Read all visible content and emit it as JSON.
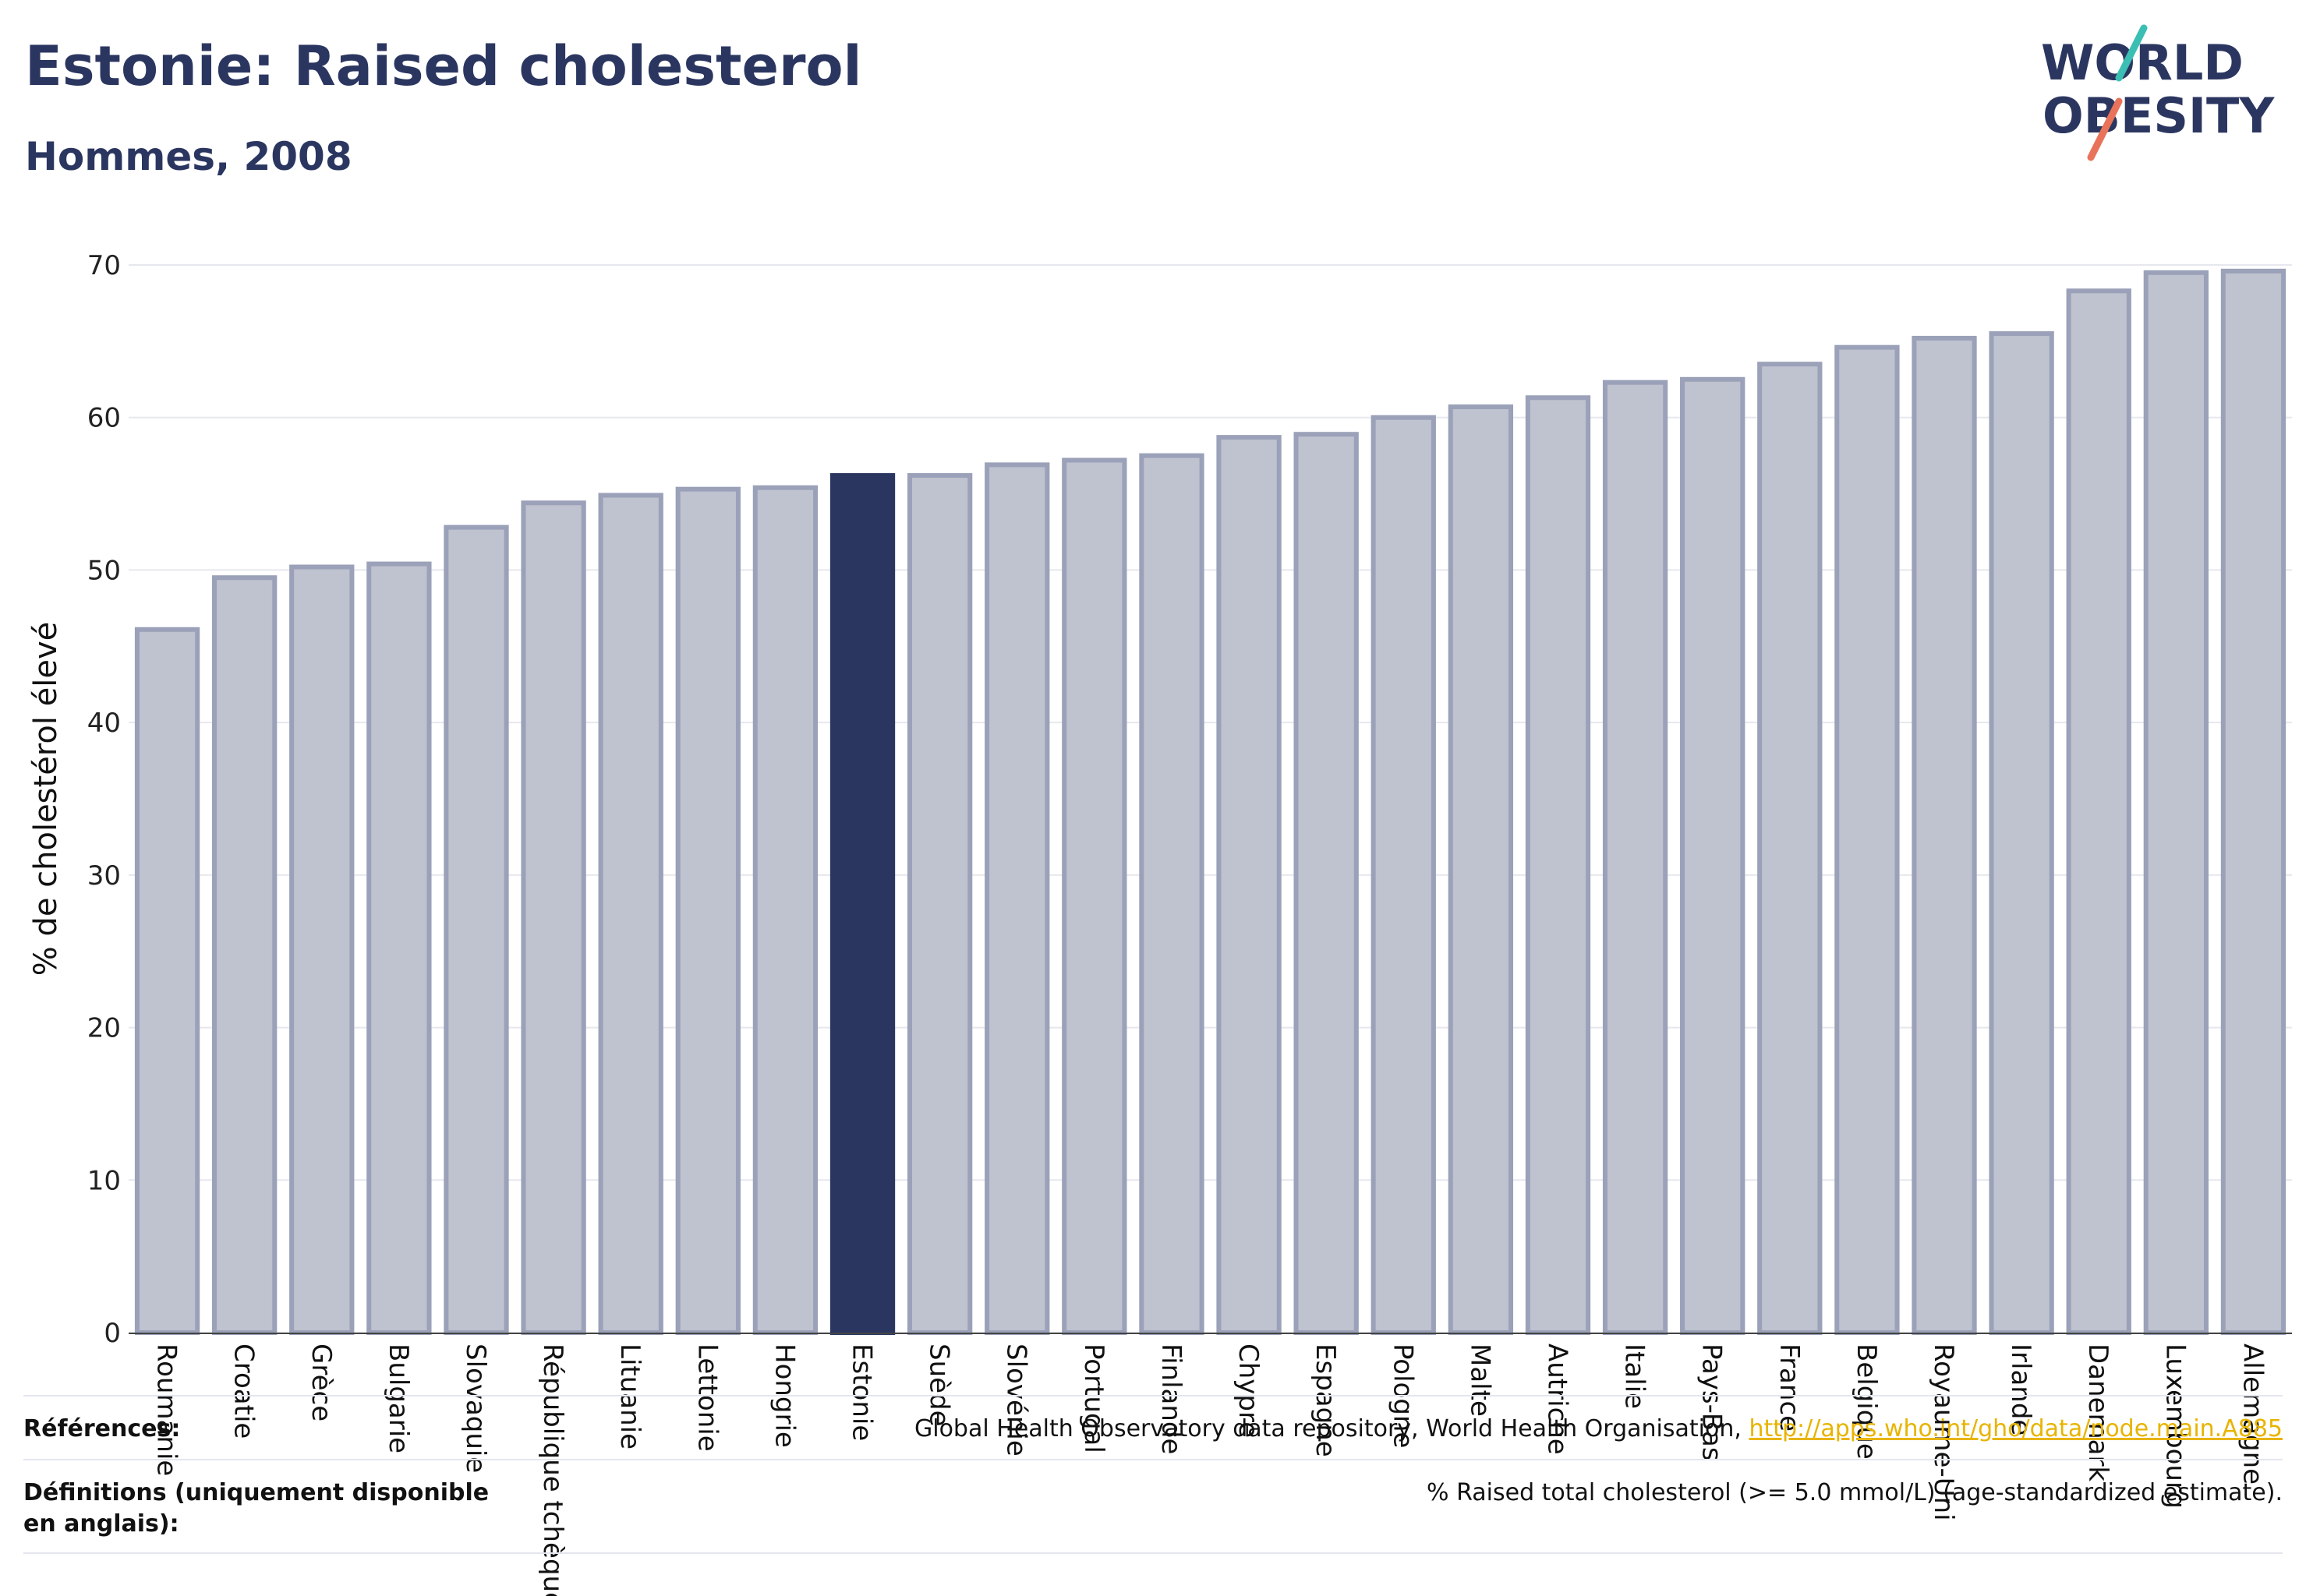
{
  "header": {
    "title": "Estonie: Raised cholesterol",
    "subtitle": "Hommes, 2008"
  },
  "logo": {
    "line1": "WORLD",
    "line2": "OBESITY",
    "slash_colors": [
      "#3bbfb4",
      "#e8735a"
    ]
  },
  "colors": {
    "highlight": "#2b3660",
    "bar_fill": "#bfc2cf",
    "bar_stroke": "#9aa1b8",
    "grid": "#e6e8ee"
  },
  "chart_data": {
    "type": "bar",
    "ylabel": "% de cholestérol élevé",
    "xlabel": "",
    "ylim": [
      0,
      70
    ],
    "yticks": [
      0,
      10,
      20,
      30,
      40,
      50,
      60,
      70
    ],
    "grid": true,
    "highlight": "Estonie",
    "categories": [
      "Roumanie",
      "Croatie",
      "Grèce",
      "Bulgarie",
      "Slovaquie",
      "République tchèque",
      "Lituanie",
      "Lettonie",
      "Hongrie",
      "Estonie",
      "Suède",
      "Slovénie",
      "Portugal",
      "Finlande",
      "Chypre",
      "Espagne",
      "Pologne",
      "Malte",
      "Autriche",
      "Italie",
      "Pays-Bas",
      "France",
      "Belgique",
      "Royaume-Uni",
      "Irlande",
      "Danemark",
      "Luxembourg",
      "Allemagne"
    ],
    "values": [
      46.1,
      49.5,
      50.2,
      50.4,
      52.8,
      54.4,
      54.9,
      55.3,
      55.4,
      56.2,
      56.2,
      56.9,
      57.2,
      57.5,
      58.7,
      58.9,
      60.0,
      60.7,
      61.3,
      62.3,
      62.5,
      63.5,
      64.6,
      65.2,
      65.5,
      68.3,
      69.5,
      69.6
    ]
  },
  "footer": {
    "references_label": "Références:",
    "references_text": "Global Health Observatory data repository, World Health Organisation,",
    "references_link": "http://apps.who.int/gho/data/node.main.A885",
    "definitions_label": "Définitions (uniquement disponible en anglais):",
    "definitions_text": "% Raised total cholesterol (>= 5.0 mmol/L) (age-standardized estimate)."
  }
}
